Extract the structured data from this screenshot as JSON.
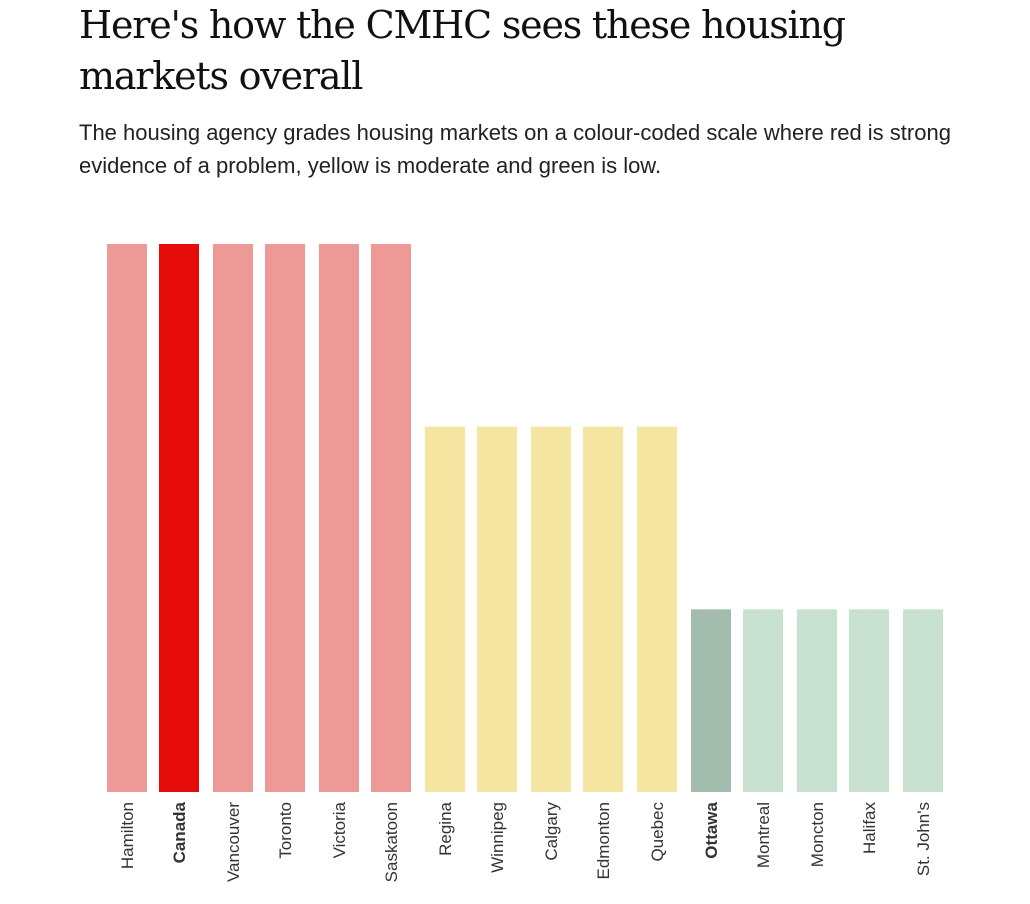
{
  "header": {
    "title": "Here's how the CMHC sees these housing markets overall",
    "subtitle": "The housing agency grades housing markets on a colour-coded scale where red is strong evidence of a problem, yellow is moderate and green is low."
  },
  "colors": {
    "red": "#ed9a97",
    "red_highlight": "#e60c0a",
    "yellow": "#f4e6a0",
    "green": "#c8e1d0",
    "green_highlight": "#a2bdad",
    "label": "#333333"
  },
  "chart_data": {
    "type": "bar",
    "title": "Here's how the CMHC sees these housing markets overall",
    "xlabel": "",
    "ylabel": "",
    "ylim": [
      0,
      3
    ],
    "grid": false,
    "levels": {
      "3": "red",
      "2": "yellow",
      "1": "green"
    },
    "categories": [
      "Hamilton",
      "Canada",
      "Vancouver",
      "Toronto",
      "Victoria",
      "Saskatoon",
      "Regina",
      "Winnipeg",
      "Calgary",
      "Edmonton",
      "Quebec",
      "Ottawa",
      "Montreal",
      "Moncton",
      "Halifax",
      "St. John's"
    ],
    "values": [
      3,
      3,
      3,
      3,
      3,
      3,
      2,
      2,
      2,
      2,
      2,
      1,
      1,
      1,
      1,
      1
    ],
    "highlighted": [
      "Canada",
      "Ottawa"
    ]
  }
}
